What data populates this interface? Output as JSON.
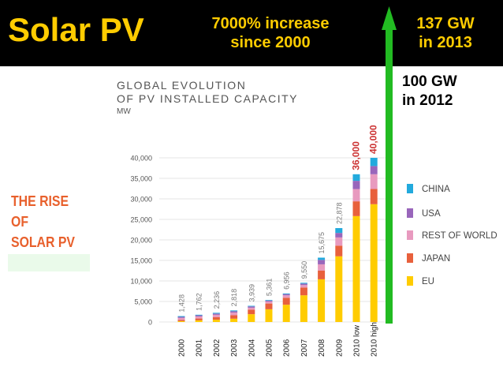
{
  "slide": {
    "title": "Solar PV",
    "increase_line1": "7000% increase",
    "increase_line2": "since 2000",
    "gw2013_line1": "137 GW",
    "gw2013_line2": "in 2013",
    "gw2012_line1": "100 GW",
    "gw2012_line2": "in 2012",
    "rise_line1": "THE RISE",
    "rise_line2": "OF",
    "rise_line3": "SOLAR PV",
    "colors": {
      "title": "#ffcc00",
      "bar": "#000000",
      "arrow": "#22bb22",
      "highlight": "#cc3333",
      "rise": "#e8602c"
    }
  },
  "chart_data": {
    "type": "bar",
    "stacked": true,
    "title_line1": "GLOBAL EVOLUTION",
    "title_line2": "OF PV INSTALLED CAPACITY",
    "ylabel": "MW",
    "ylim": [
      0,
      40000
    ],
    "yticks": [
      0,
      5000,
      10000,
      15000,
      20000,
      25000,
      30000,
      35000,
      40000
    ],
    "ytick_labels": [
      "0",
      "5,000",
      "10,000",
      "15,000",
      "20,000",
      "25,000",
      "30,000",
      "35,000",
      "40,000"
    ],
    "categories": [
      "2000",
      "2001",
      "2002",
      "2003",
      "2004",
      "2005",
      "2006",
      "2007",
      "2008",
      "2009",
      "2010 low",
      "2010 high"
    ],
    "totals": [
      1428,
      1762,
      2236,
      2818,
      3939,
      5361,
      6956,
      9550,
      15675,
      22878,
      36000,
      40000
    ],
    "total_labels": [
      "1,428",
      "1,762",
      "2,236",
      "2,818",
      "3,939",
      "5,361",
      "6,956",
      "9,550",
      "15,675",
      "22,878",
      "36,000",
      "40,000"
    ],
    "series": [
      {
        "name": "EU",
        "color": "#ffcc00",
        "values": [
          200,
          400,
          550,
          800,
          1900,
          3100,
          4200,
          6500,
          10400,
          16000,
          25800,
          28700
        ]
      },
      {
        "name": "JAPAN",
        "color": "#e8603c",
        "values": [
          300,
          450,
          600,
          850,
          1100,
          1400,
          1700,
          1900,
          2150,
          2600,
          3600,
          3700
        ]
      },
      {
        "name": "REST OF WORLD",
        "color": "#e89abf",
        "values": [
          500,
          500,
          600,
          650,
          480,
          450,
          600,
          600,
          1500,
          2000,
          3000,
          3600
        ]
      },
      {
        "name": "USA",
        "color": "#9966bb",
        "values": [
          250,
          270,
          300,
          330,
          310,
          270,
          300,
          350,
          1075,
          1100,
          2000,
          2000
        ]
      },
      {
        "name": "CHINA",
        "color": "#22aadd",
        "values": [
          178,
          142,
          186,
          188,
          149,
          141,
          156,
          200,
          550,
          1178,
          1600,
          2000
        ]
      }
    ],
    "legend_order": [
      "CHINA",
      "USA",
      "REST OF WORLD",
      "JAPAN",
      "EU"
    ],
    "legend_position": "right",
    "highlight_indices": [
      10,
      11
    ]
  }
}
